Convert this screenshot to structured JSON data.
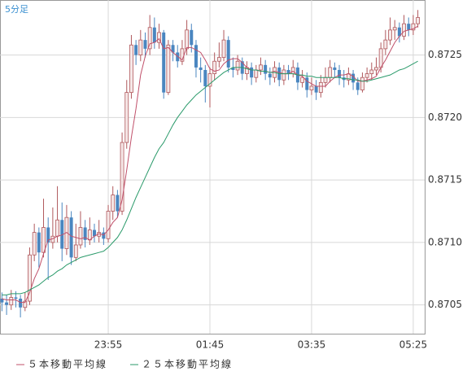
{
  "chart_data": {
    "type": "candlestick",
    "title": "5分足",
    "categories": [
      null,
      null,
      null,
      null,
      null,
      null,
      null,
      null,
      null,
      null,
      null,
      null,
      null,
      null,
      null,
      null,
      null,
      null,
      null,
      null,
      null,
      null,
      null,
      "23:55",
      null,
      null,
      null,
      null,
      null,
      null,
      null,
      null,
      null,
      null,
      null,
      null,
      null,
      null,
      null,
      null,
      null,
      null,
      null,
      null,
      null,
      "01:45",
      null,
      null,
      null,
      null,
      null,
      null,
      null,
      null,
      null,
      null,
      null,
      null,
      null,
      null,
      null,
      null,
      null,
      null,
      null,
      null,
      null,
      "03:35",
      null,
      null,
      null,
      null,
      null,
      null,
      null,
      null,
      null,
      null,
      null,
      null,
      null,
      null,
      null,
      null,
      null,
      null,
      null,
      null,
      null,
      "05:25",
      null
    ],
    "open": [
      0.87055,
      0.87052,
      0.8705,
      0.87056,
      0.87055,
      0.87048,
      0.87053,
      0.8709,
      0.87108,
      0.87092,
      0.87112,
      0.871,
      0.87105,
      0.87118,
      0.87095,
      0.8712,
      0.87088,
      0.87098,
      0.87112,
      0.87102,
      0.8711,
      0.87105,
      0.87108,
      0.87103,
      0.87125,
      0.87138,
      0.87125,
      0.8718,
      0.8722,
      0.87258,
      0.8725,
      0.87262,
      0.87255,
      0.87272,
      0.8726,
      0.87268,
      0.8722,
      0.87258,
      0.87252,
      0.87245,
      0.87255,
      0.8727,
      0.87258,
      0.8724,
      0.87238,
      0.87225,
      0.87235,
      0.87245,
      0.87248,
      0.87262,
      0.8724,
      0.87238,
      0.87245,
      0.87235,
      0.8724,
      0.87232,
      0.87238,
      0.87242,
      0.87235,
      0.87232,
      0.8724,
      0.8723,
      0.87238,
      0.87235,
      0.8724,
      0.87228,
      0.87232,
      0.87222,
      0.87225,
      0.8722,
      0.87228,
      0.87232,
      0.8724,
      0.87238,
      0.87232,
      0.8723,
      0.87235,
      0.87228,
      0.87222,
      0.87232,
      0.87235,
      0.87238,
      0.8724,
      0.87255,
      0.87262,
      0.8727,
      0.87272,
      0.87265,
      0.87275,
      0.8727,
      0.87275
    ],
    "high": [
      0.8706,
      0.87058,
      0.87062,
      0.87061,
      0.87058,
      0.8706,
      0.87096,
      0.87115,
      0.87112,
      0.87135,
      0.8712,
      0.87128,
      0.87145,
      0.87132,
      0.8713,
      0.87125,
      0.87115,
      0.87125,
      0.87118,
      0.8712,
      0.87115,
      0.87118,
      0.87112,
      0.8713,
      0.87145,
      0.87142,
      0.87188,
      0.8723,
      0.87266,
      0.87262,
      0.8727,
      0.87268,
      0.87282,
      0.8728,
      0.87275,
      0.8727,
      0.87262,
      0.87262,
      0.87258,
      0.87262,
      0.87278,
      0.87275,
      0.87262,
      0.87248,
      0.87242,
      0.8724,
      0.87252,
      0.8726,
      0.8727,
      0.87265,
      0.87248,
      0.8725,
      0.87248,
      0.87245,
      0.87244,
      0.87242,
      0.87248,
      0.87246,
      0.8724,
      0.87245,
      0.87244,
      0.87242,
      0.87242,
      0.87246,
      0.87244,
      0.87238,
      0.87236,
      0.87232,
      0.8723,
      0.87234,
      0.8724,
      0.87246,
      0.87244,
      0.87242,
      0.87238,
      0.8724,
      0.87238,
      0.87232,
      0.87236,
      0.8724,
      0.87244,
      0.87248,
      0.8726,
      0.8727,
      0.8728,
      0.87278,
      0.87276,
      0.87282,
      0.8728,
      0.87282,
      0.87286
    ],
    "low": [
      0.87045,
      0.87042,
      0.87046,
      0.87048,
      0.8704,
      0.87045,
      0.8705,
      0.87085,
      0.8708,
      0.87088,
      0.8707,
      0.87095,
      0.871,
      0.87085,
      0.8709,
      0.87082,
      0.87085,
      0.87095,
      0.87096,
      0.87098,
      0.871,
      0.871,
      0.87098,
      0.871,
      0.87118,
      0.8712,
      0.87122,
      0.87175,
      0.87215,
      0.87242,
      0.87245,
      0.87248,
      0.8725,
      0.87255,
      0.87255,
      0.87215,
      0.87218,
      0.87245,
      0.8724,
      0.87242,
      0.8725,
      0.87252,
      0.87232,
      0.87228,
      0.87212,
      0.87208,
      0.8723,
      0.8724,
      0.87245,
      0.87236,
      0.87232,
      0.87234,
      0.8723,
      0.8723,
      0.87226,
      0.87228,
      0.87234,
      0.8723,
      0.87226,
      0.87228,
      0.87225,
      0.87226,
      0.8723,
      0.87232,
      0.87222,
      0.87224,
      0.87216,
      0.87218,
      0.87214,
      0.87216,
      0.87224,
      0.87228,
      0.87232,
      0.87226,
      0.87224,
      0.87226,
      0.87222,
      0.87218,
      0.8722,
      0.87228,
      0.8723,
      0.87234,
      0.87236,
      0.8725,
      0.87258,
      0.87262,
      0.8726,
      0.87262,
      0.87265,
      0.87266,
      0.87272
    ],
    "close": [
      0.87052,
      0.8705,
      0.87056,
      0.87055,
      0.87048,
      0.87053,
      0.8709,
      0.87108,
      0.87092,
      0.87112,
      0.871,
      0.87105,
      0.87118,
      0.87095,
      0.8712,
      0.87088,
      0.87098,
      0.87112,
      0.87102,
      0.8711,
      0.87105,
      0.87108,
      0.87103,
      0.87125,
      0.87138,
      0.87125,
      0.8718,
      0.8722,
      0.87258,
      0.8725,
      0.87262,
      0.87255,
      0.87272,
      0.8726,
      0.87268,
      0.8722,
      0.87258,
      0.87252,
      0.87245,
      0.87255,
      0.8727,
      0.87258,
      0.8724,
      0.87238,
      0.87225,
      0.87235,
      0.87245,
      0.87248,
      0.87262,
      0.8724,
      0.87238,
      0.87245,
      0.87235,
      0.8724,
      0.87232,
      0.87238,
      0.87242,
      0.87235,
      0.87232,
      0.8724,
      0.8723,
      0.87238,
      0.87235,
      0.8724,
      0.87228,
      0.87232,
      0.87222,
      0.87225,
      0.8722,
      0.87228,
      0.87232,
      0.8724,
      0.87238,
      0.87232,
      0.8723,
      0.87235,
      0.87228,
      0.87222,
      0.87232,
      0.87235,
      0.87238,
      0.8724,
      0.87255,
      0.87262,
      0.8727,
      0.87272,
      0.87265,
      0.87275,
      0.8727,
      0.87275,
      0.8728
    ],
    "up_color": "#b0585c",
    "down_color": "#4a86c0",
    "series": [
      {
        "name": "５本移動平均線",
        "color": "#c0506a",
        "values": [
          0.87055,
          0.87054,
          0.87054,
          0.87054,
          0.87052,
          0.87052,
          0.8706,
          0.87071,
          0.87079,
          0.87091,
          0.87102,
          0.87103,
          0.87105,
          0.87106,
          0.87108,
          0.87105,
          0.87104,
          0.87103,
          0.87104,
          0.87102,
          0.87105,
          0.87107,
          0.87106,
          0.8711,
          0.87116,
          0.8712,
          0.87134,
          0.87158,
          0.87184,
          0.87207,
          0.87234,
          0.87249,
          0.87259,
          0.8726,
          0.87263,
          0.87255,
          0.87256,
          0.87252,
          0.87249,
          0.87246,
          0.87256,
          0.87256,
          0.87254,
          0.87252,
          0.87246,
          0.87239,
          0.87237,
          0.87238,
          0.87243,
          0.87246,
          0.87247,
          0.87247,
          0.87244,
          0.8724,
          0.87238,
          0.87238,
          0.87237,
          0.87237,
          0.87236,
          0.87237,
          0.87236,
          0.87235,
          0.87235,
          0.87237,
          0.87234,
          0.87233,
          0.87229,
          0.87227,
          0.87225,
          0.87225,
          0.87225,
          0.87229,
          0.87232,
          0.87234,
          0.87234,
          0.87235,
          0.87233,
          0.87229,
          0.87229,
          0.8723,
          0.87231,
          0.87233,
          0.8724,
          0.87246,
          0.87253,
          0.8726,
          0.87265,
          0.87269,
          0.8727,
          0.87271,
          0.87273
        ]
      },
      {
        "name": "２５本移動平均線",
        "color": "#2a9a6a",
        "values": [
          0.87058,
          0.87058,
          0.87059,
          0.87059,
          0.87059,
          0.8706,
          0.87062,
          0.87064,
          0.87066,
          0.87069,
          0.87072,
          0.87074,
          0.87077,
          0.87079,
          0.87082,
          0.87084,
          0.87086,
          0.87088,
          0.87089,
          0.8709,
          0.87091,
          0.87092,
          0.87093,
          0.87096,
          0.871,
          0.87104,
          0.8711,
          0.87118,
          0.87127,
          0.87136,
          0.87144,
          0.87152,
          0.8716,
          0.87168,
          0.87175,
          0.8718,
          0.87187,
          0.87194,
          0.872,
          0.87205,
          0.8721,
          0.87214,
          0.87218,
          0.87221,
          0.87224,
          0.87227,
          0.8723,
          0.87233,
          0.87236,
          0.87238,
          0.8724,
          0.8724,
          0.8724,
          0.87239,
          0.87238,
          0.87238,
          0.87237,
          0.87237,
          0.87236,
          0.87236,
          0.87235,
          0.87235,
          0.87235,
          0.87235,
          0.87234,
          0.87234,
          0.87233,
          0.87233,
          0.87232,
          0.87232,
          0.87232,
          0.87232,
          0.87232,
          0.87232,
          0.87231,
          0.87231,
          0.8723,
          0.8723,
          0.87229,
          0.87229,
          0.8723,
          0.87231,
          0.87232,
          0.87233,
          0.87234,
          0.87236,
          0.87238,
          0.87239,
          0.87241,
          0.87243,
          0.87245
        ]
      }
    ],
    "ylim": [
      0.87027,
      0.87294
    ],
    "yticks": [
      0.8705,
      {
        "value": 0.871,
        "label": "0.8710"
      },
      0.8715,
      {
        "value": 0.872,
        "label": "0.8720"
      },
      0.8725
    ],
    "grid": true
  }
}
